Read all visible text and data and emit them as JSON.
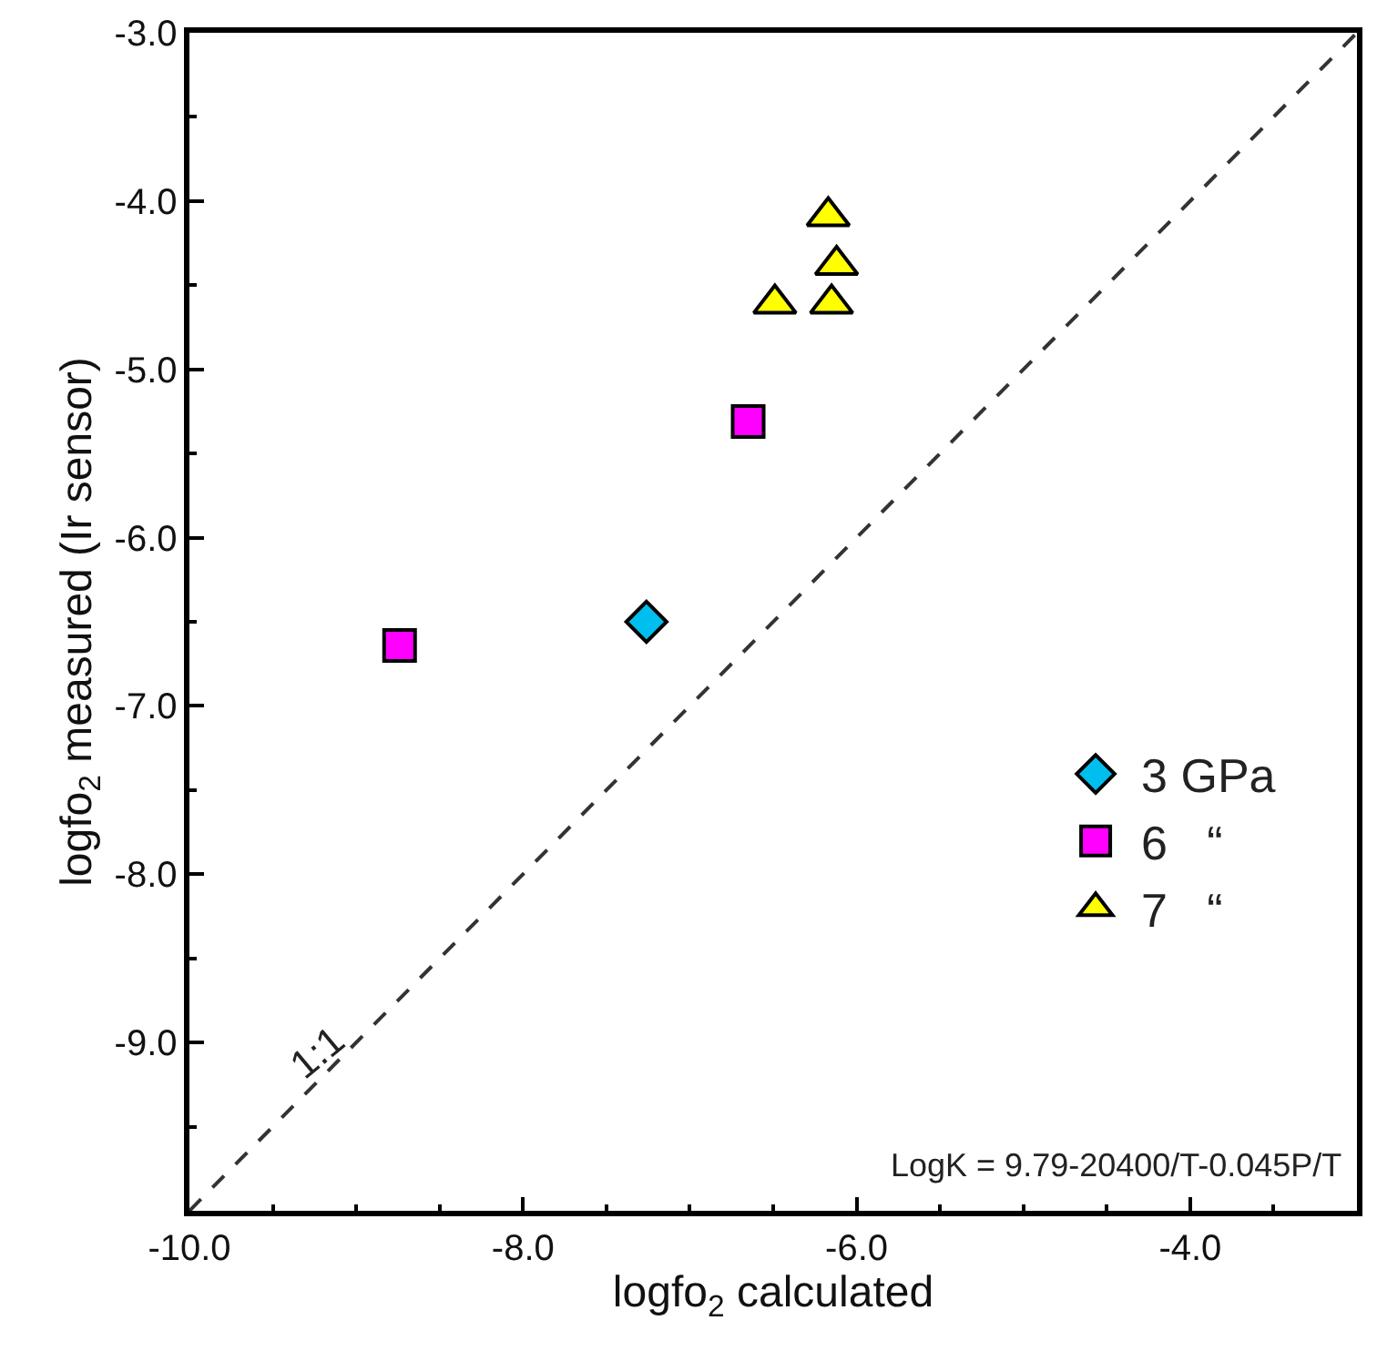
{
  "chart_data": {
    "type": "scatter",
    "xlabel": "logfo$_{2}$ calculated",
    "ylabel": "logfo$_{2}$ measured (Ir sensor)",
    "xlim": [
      -10,
      -3
    ],
    "ylim": [
      -10,
      -3
    ],
    "xticks": [
      {
        "value": -10,
        "label": "-10.0"
      },
      {
        "value": -8,
        "label": "-8.0"
      },
      {
        "value": -6,
        "label": "-6.0"
      },
      {
        "value": -4,
        "label": "-4.0"
      }
    ],
    "yticks": [
      {
        "value": -9,
        "label": "-9.0"
      },
      {
        "value": -8,
        "label": "-8.0"
      },
      {
        "value": -7,
        "label": "-7.0"
      },
      {
        "value": -6,
        "label": "-6.0"
      },
      {
        "value": -5,
        "label": "-5.0"
      },
      {
        "value": -4,
        "label": "-4.0"
      },
      {
        "value": -3,
        "label": "-3.0"
      }
    ],
    "series": [
      {
        "name": "3 GPa",
        "color": "#00bfef",
        "marker": "diamond",
        "x": [
          -7.26
        ],
        "values": [
          -6.5
        ]
      },
      {
        "name": "6   “",
        "color": "#ff00ff",
        "marker": "square",
        "x": [
          -8.74,
          -6.65
        ],
        "values": [
          -6.64,
          -5.31
        ]
      },
      {
        "name": "7   “",
        "color": "#ffff00",
        "marker": "triangle",
        "x": [
          -6.17,
          -6.12,
          -6.49,
          -6.15
        ],
        "values": [
          -4.09,
          -4.38,
          -4.61,
          -4.61
        ]
      },
      {
        "type": "line",
        "color": "#333333",
        "line_style": "dashed",
        "marker": "none",
        "x": [
          -10,
          -3
        ],
        "values": [
          -10,
          -3
        ]
      }
    ],
    "annotations": [
      "1:1",
      "LogK = 9.79-20400/T-0.045P/T"
    ],
    "legend": "bottom right"
  }
}
